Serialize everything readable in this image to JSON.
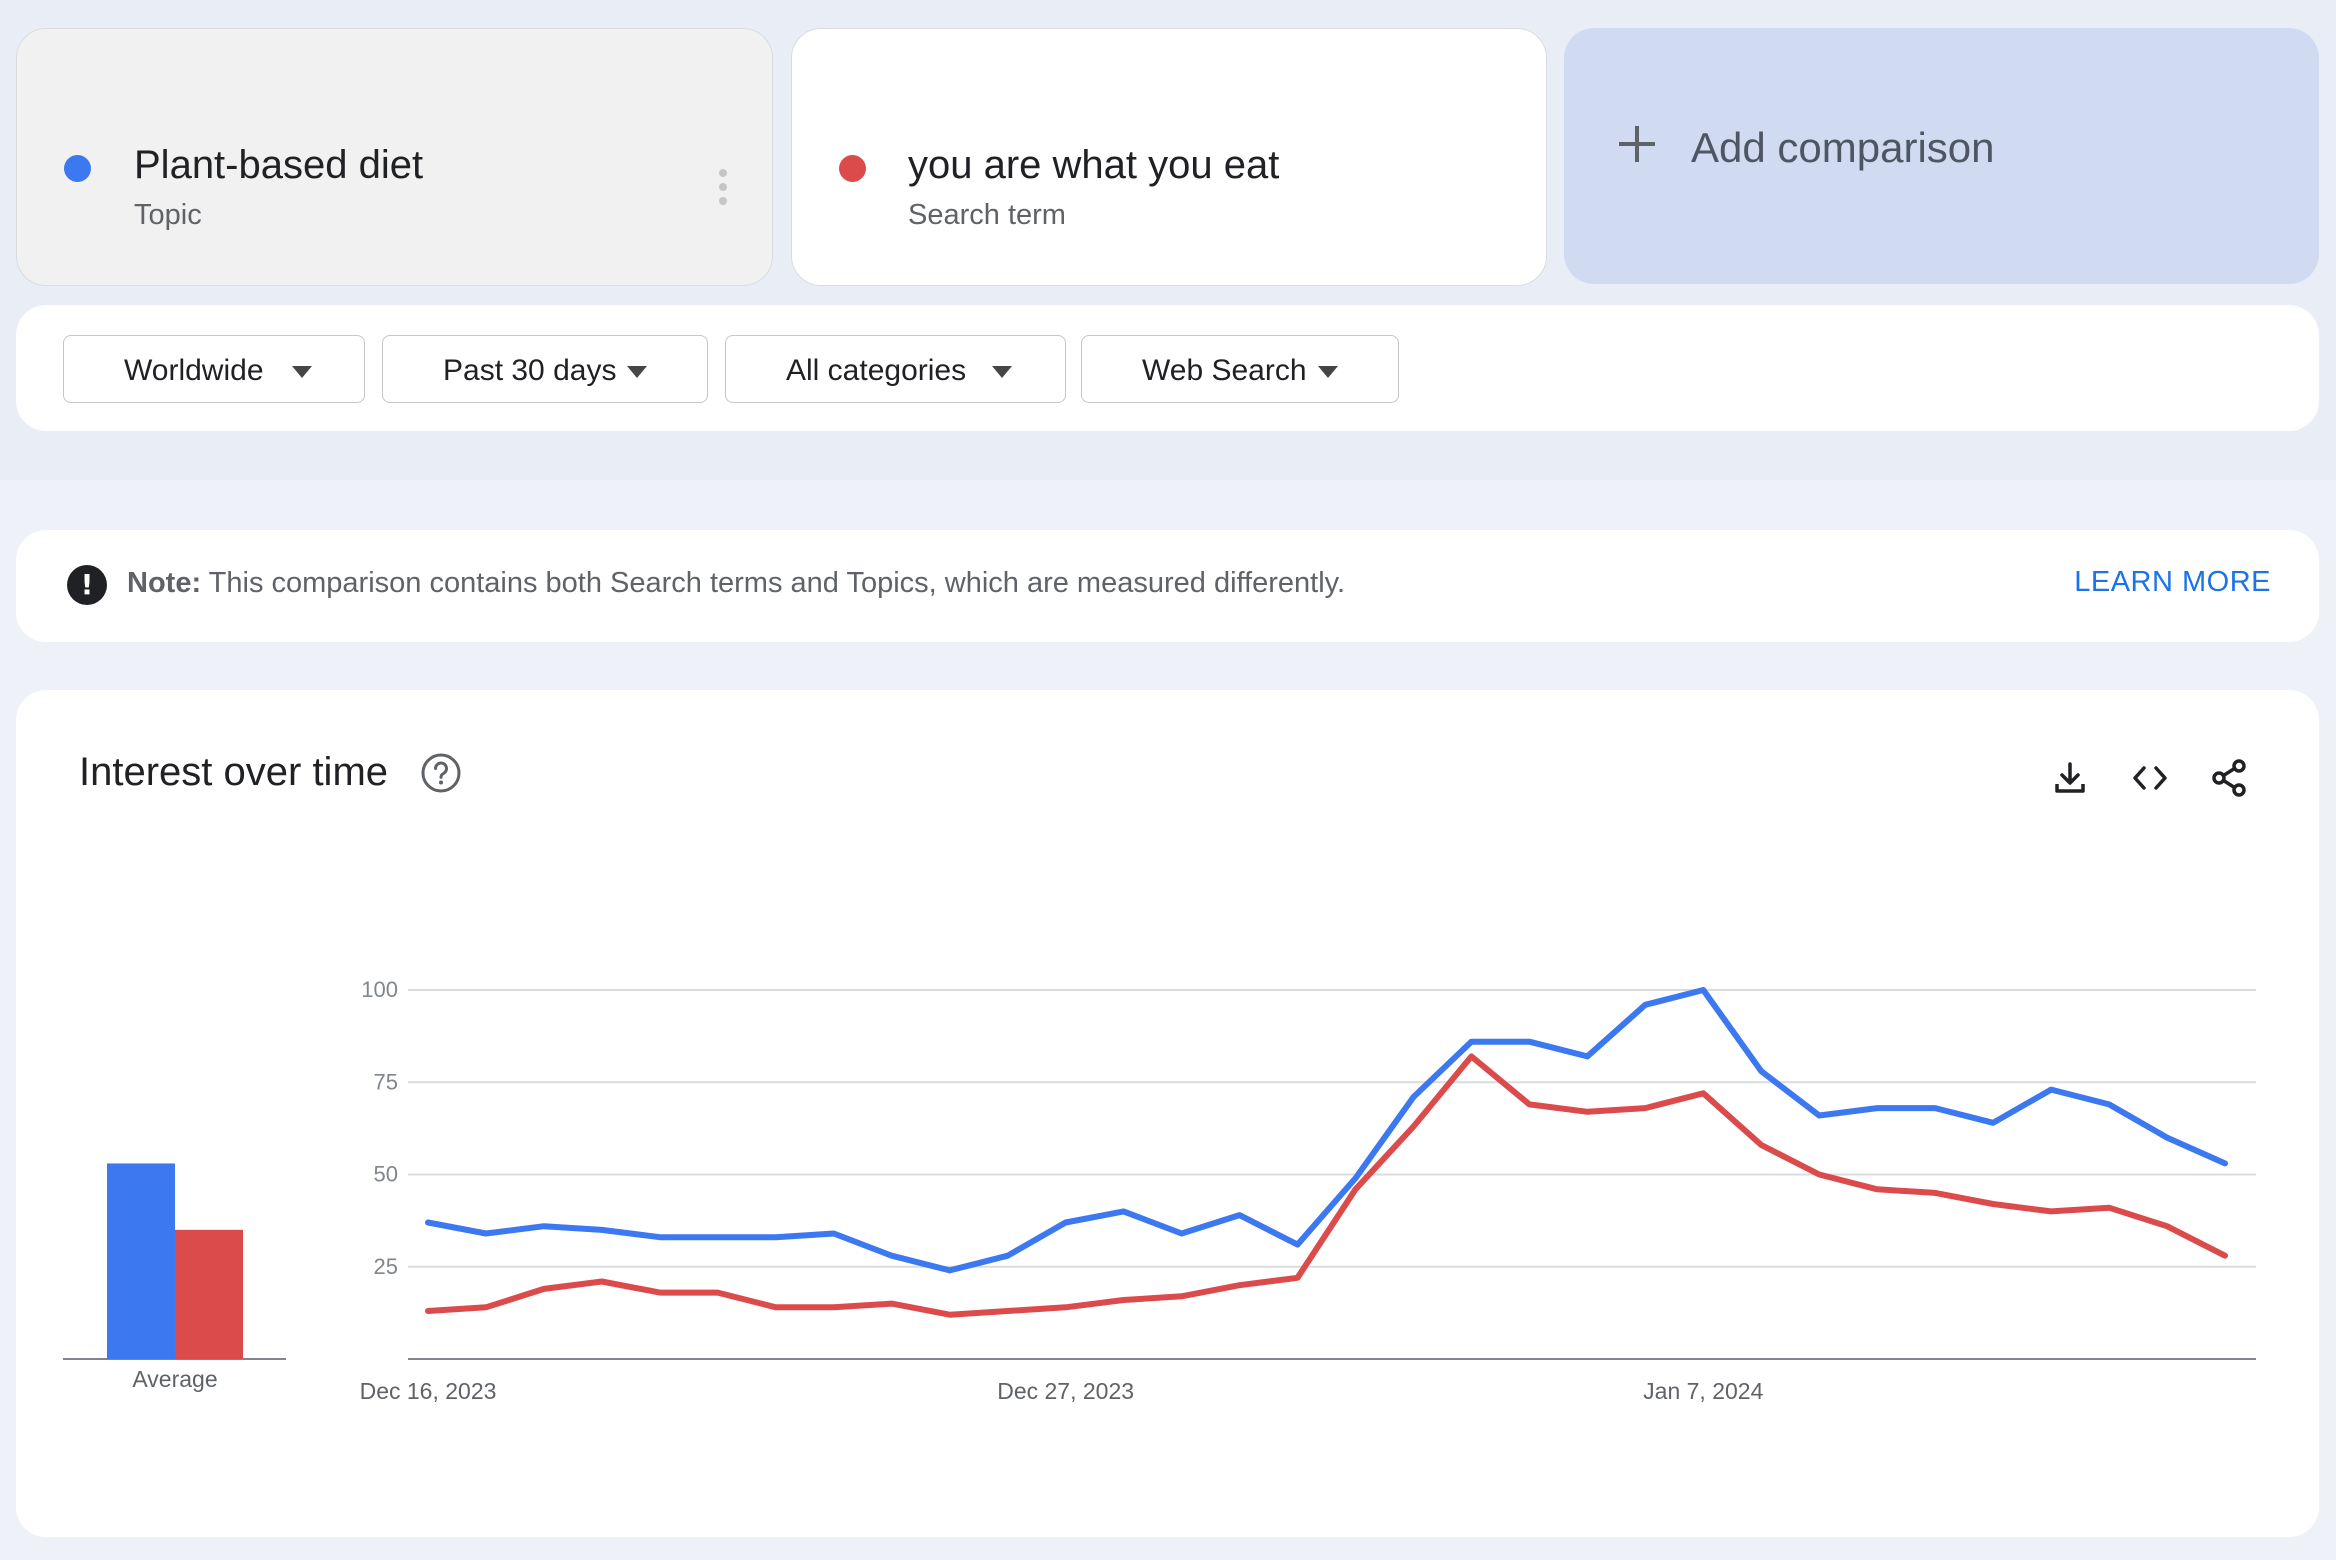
{
  "terms": [
    {
      "name": "Plant-based diet",
      "type": "Topic",
      "color": "#3c78f0"
    },
    {
      "name": "you are what you eat",
      "type": "Search term",
      "color": "#dc4b4b"
    }
  ],
  "add_comparison": {
    "label": "Add comparison"
  },
  "filters": [
    {
      "label": "Worldwide"
    },
    {
      "label": "Past 30 days"
    },
    {
      "label": "All categories"
    },
    {
      "label": "Web Search"
    }
  ],
  "note": {
    "bold": "Note:",
    "text": "This comparison contains both Search terms and Topics, which are measured differently.",
    "link": "LEARN MORE"
  },
  "interest": {
    "title": "Interest over time"
  },
  "chart_data": {
    "type": "line",
    "title": "Interest over time",
    "ylim": [
      0,
      100
    ],
    "yticks": [
      "100",
      "75",
      "50",
      "25"
    ],
    "x_labels": [
      "Dec 16, 2023",
      "Dec 27, 2023",
      "Jan 7, 2024"
    ],
    "x_label_indices": [
      0,
      11,
      22
    ],
    "average_label": "Average",
    "grid": true,
    "series": [
      {
        "name": "Plant-based diet",
        "color": "#3c78f0",
        "average": 53,
        "values": [
          37,
          34,
          36,
          35,
          33,
          33,
          33,
          34,
          28,
          24,
          28,
          37,
          40,
          34,
          39,
          31,
          49,
          71,
          86,
          86,
          82,
          96,
          100,
          78,
          66,
          68,
          68,
          64,
          73,
          69,
          60,
          53
        ]
      },
      {
        "name": "you are what you eat",
        "color": "#dc4b4b",
        "average": 35,
        "values": [
          13,
          14,
          19,
          21,
          18,
          18,
          14,
          14,
          15,
          12,
          13,
          14,
          16,
          17,
          20,
          22,
          46,
          63,
          82,
          69,
          67,
          68,
          72,
          58,
          50,
          46,
          45,
          42,
          40,
          41,
          36,
          28
        ]
      }
    ]
  }
}
